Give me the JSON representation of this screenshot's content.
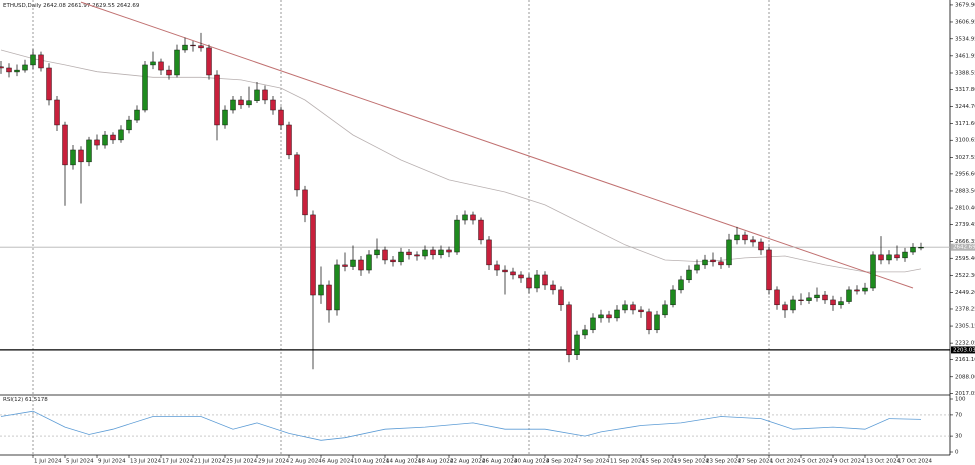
{
  "chart_data": {
    "type": "candlestick",
    "symbol": "ETHUSD,Daily",
    "categories": [
      null,
      null,
      null,
      null,
      "1 Jul 2024",
      null,
      null,
      null,
      "5 Jul 2024",
      null,
      null,
      null,
      "9 Jul 2024",
      null,
      null,
      null,
      "13 Jul 2024",
      null,
      null,
      null,
      "17 Jul 2024",
      null,
      null,
      null,
      "21 Jul 2024",
      null,
      null,
      null,
      "25 Jul 2024",
      null,
      null,
      null,
      "29 Jul 2024",
      null,
      null,
      null,
      "2 Aug 2024",
      null,
      null,
      null,
      "6 Aug 2024",
      null,
      null,
      null,
      "10 Aug 2024",
      null,
      null,
      null,
      "14 Aug 2024",
      null,
      null,
      null,
      "18 Aug 2024",
      null,
      null,
      null,
      "22 Aug 2024",
      null,
      null,
      null,
      "26 Aug 2024",
      null,
      null,
      null,
      "30 Aug 2024",
      null,
      null,
      null,
      "3 Sep 2024",
      null,
      null,
      null,
      "7 Sep 2024",
      null,
      null,
      null,
      "11 Sep 2024",
      null,
      null,
      null,
      "15 Sep 2024",
      null,
      null,
      null,
      "19 Sep 2024",
      null,
      null,
      null,
      "23 Sep 2024",
      null,
      null,
      null,
      "27 Sep 2024",
      null,
      null,
      null,
      "1 Oct 2024",
      null,
      null,
      null,
      "5 Oct 2024",
      null,
      null,
      null,
      "9 Oct 2024",
      null,
      null,
      null,
      "13 Oct 2024",
      null,
      null,
      null,
      "17 Oct 2024",
      null,
      null,
      null
    ],
    "open": [
      3415,
      3410,
      3393,
      3401,
      3423,
      3466,
      3410,
      3273,
      3166,
      2995,
      3059,
      3008,
      3102,
      3080,
      3123,
      3102,
      3145,
      3187,
      3230,
      3423,
      3436,
      3401,
      3380,
      3487,
      3508,
      3505,
      3496,
      3380,
      3166,
      3230,
      3273,
      3252,
      3270,
      3316,
      3273,
      3230,
      3166,
      3038,
      2888,
      2781,
      2438,
      2481,
      2374,
      2567,
      2560,
      2588,
      2545,
      2610,
      2631,
      2588,
      2580,
      2622,
      2610,
      2605,
      2631,
      2610,
      2631,
      2622,
      2759,
      2781,
      2759,
      2674,
      2567,
      2545,
      2537,
      2524,
      2511,
      2468,
      2524,
      2481,
      2460,
      2396,
      2182,
      2267,
      2289,
      2340,
      2353,
      2340,
      2374,
      2396,
      2374,
      2366,
      2289,
      2353,
      2396,
      2460,
      2503,
      2545,
      2567,
      2588,
      2580,
      2567,
      2674,
      2695,
      2674,
      2665,
      2631,
      2460,
      2396,
      2374,
      2417,
      2414,
      2426,
      2438,
      2417,
      2396,
      2410,
      2460,
      2455,
      2468,
      2610,
      2588,
      2610,
      2597,
      2622,
      2642.08
    ],
    "high": [
      3440,
      3430,
      3425,
      3445,
      3490,
      3480,
      3430,
      3290,
      3180,
      3080,
      3075,
      3115,
      3125,
      3140,
      3135,
      3165,
      3205,
      3250,
      3440,
      3480,
      3450,
      3420,
      3510,
      3540,
      3525,
      3560,
      3510,
      3400,
      3250,
      3290,
      3290,
      3330,
      3350,
      3335,
      3290,
      3245,
      3180,
      3050,
      2905,
      2800,
      2560,
      2500,
      2590,
      2620,
      2650,
      2605,
      2630,
      2680,
      2645,
      2605,
      2640,
      2635,
      2625,
      2650,
      2645,
      2650,
      2645,
      2780,
      2800,
      2795,
      2770,
      2690,
      2585,
      2565,
      2555,
      2540,
      2530,
      2545,
      2540,
      2500,
      2475,
      2410,
      2285,
      2310,
      2360,
      2375,
      2370,
      2395,
      2415,
      2410,
      2390,
      2380,
      2370,
      2415,
      2480,
      2520,
      2565,
      2590,
      2610,
      2620,
      2600,
      2700,
      2730,
      2710,
      2690,
      2680,
      2645,
      2475,
      2410,
      2435,
      2445,
      2450,
      2470,
      2455,
      2435,
      2430,
      2475,
      2480,
      2490,
      2625,
      2690,
      2630,
      2650,
      2640,
      2660,
      2661.97
    ],
    "low": [
      3385,
      3370,
      3375,
      3390,
      3405,
      3395,
      3250,
      3140,
      2820,
      2975,
      2830,
      2990,
      3060,
      3065,
      3085,
      3090,
      3130,
      3175,
      3220,
      3405,
      3380,
      3360,
      3370,
      3475,
      3480,
      3480,
      3360,
      3100,
      3150,
      3215,
      3235,
      3240,
      3260,
      3255,
      3210,
      3145,
      3020,
      2860,
      2750,
      2120,
      2400,
      2320,
      2350,
      2540,
      2545,
      2520,
      2530,
      2595,
      2570,
      2560,
      2565,
      2590,
      2585,
      2590,
      2590,
      2595,
      2600,
      2610,
      2740,
      2740,
      2655,
      2545,
      2520,
      2440,
      2505,
      2490,
      2445,
      2450,
      2460,
      2440,
      2370,
      2150,
      2160,
      2250,
      2275,
      2320,
      2320,
      2325,
      2360,
      2355,
      2340,
      2270,
      2275,
      2340,
      2385,
      2445,
      2490,
      2530,
      2550,
      2560,
      2550,
      2555,
      2655,
      2655,
      2645,
      2610,
      2440,
      2375,
      2340,
      2360,
      2395,
      2400,
      2410,
      2400,
      2370,
      2380,
      2400,
      2440,
      2440,
      2455,
      2570,
      2570,
      2585,
      2580,
      2610,
      2629.55
    ],
    "close": [
      3410,
      3393,
      3401,
      3423,
      3466,
      3410,
      3273,
      3166,
      2995,
      3059,
      3008,
      3102,
      3080,
      3123,
      3102,
      3145,
      3187,
      3230,
      3423,
      3436,
      3401,
      3380,
      3487,
      3508,
      3505,
      3496,
      3380,
      3166,
      3230,
      3273,
      3252,
      3270,
      3316,
      3273,
      3230,
      3166,
      3038,
      2888,
      2781,
      2438,
      2481,
      2374,
      2567,
      2560,
      2588,
      2545,
      2610,
      2631,
      2588,
      2580,
      2622,
      2610,
      2605,
      2631,
      2610,
      2631,
      2622,
      2759,
      2781,
      2759,
      2674,
      2567,
      2545,
      2537,
      2524,
      2511,
      2468,
      2524,
      2481,
      2460,
      2396,
      2182,
      2267,
      2289,
      2340,
      2353,
      2340,
      2374,
      2396,
      2374,
      2366,
      2289,
      2353,
      2396,
      2460,
      2503,
      2545,
      2567,
      2588,
      2580,
      2567,
      2674,
      2695,
      2674,
      2665,
      2631,
      2460,
      2396,
      2374,
      2417,
      2414,
      2426,
      2438,
      2417,
      2396,
      2410,
      2460,
      2455,
      2468,
      2610,
      2588,
      2610,
      2597,
      2622,
      2642.08,
      2642.69
    ],
    "up_color": "#1e8a1e",
    "down_color": "#c8203c",
    "ylim": [
      2010,
      3701
    ],
    "yticks": [
      {
        "value": 3679.9,
        "label": "3679.90"
      },
      3606.95,
      3534.95,
      3461.95,
      3388.55,
      {
        "value": 3317.8,
        "label": "3317.80"
      },
      {
        "value": 3244.7,
        "label": "3244.70"
      },
      {
        "value": 3171.6,
        "label": "3171.60"
      },
      3100.65,
      3027.55,
      {
        "value": 2956.6,
        "label": "2956.60"
      },
      {
        "value": 2883.5,
        "label": "2883.50"
      },
      {
        "value": 2810.4,
        "label": "2810.40"
      },
      2739.45,
      2666.35,
      {
        "value": 2595.4,
        "label": "2595.40"
      },
      {
        "value": 2522.3,
        "label": "2522.30"
      },
      {
        "value": 2449.2,
        "label": "2449.20"
      },
      2378.25,
      2305.15,
      2232.05,
      {
        "value": 2161.1,
        "label": "2161.10"
      },
      {
        "value": 2088,
        "label": "2088.00"
      },
      2017.05
    ],
    "moving_average": {
      "x": [
        0,
        4,
        8,
        12,
        19,
        25,
        30,
        35,
        38,
        44,
        50,
        56,
        63,
        68,
        73,
        78,
        83,
        88,
        93,
        98,
        103,
        108,
        113,
        115
      ],
      "values": [
        3487,
        3450,
        3423,
        3394,
        3370,
        3370,
        3359,
        3324,
        3273,
        3123,
        3016,
        2931,
        2879,
        2824,
        2738,
        2653,
        2588,
        2580,
        2597,
        2605,
        2567,
        2537,
        2537,
        2550
      ],
      "color": "#b8b0b0"
    },
    "trendline": {
      "x": [
        10,
        114
      ],
      "values": [
        3692,
        2468
      ],
      "color": "#c07070"
    },
    "price_lines": [
      {
        "value": 2642.69,
        "color": "#b4b4b4"
      },
      {
        "value": 2203.03,
        "color": "#000000"
      }
    ],
    "rsi": {
      "name": "RSI(12)",
      "x": [
        0,
        4,
        8,
        11,
        14,
        19,
        25,
        29,
        32,
        36,
        40,
        43,
        48,
        53,
        59,
        63,
        68,
        73,
        75,
        80,
        85,
        90,
        95,
        99,
        104,
        108,
        111,
        115
      ],
      "values": [
        67,
        77,
        47,
        33,
        43,
        67,
        67,
        43,
        55,
        35,
        22,
        27,
        43,
        47,
        55,
        43,
        43,
        30,
        38,
        50,
        55,
        67,
        63,
        43,
        47,
        43,
        63,
        61.5178
      ],
      "ylim": [
        0,
        100
      ],
      "yticks": [
        100,
        70,
        30,
        0
      ],
      "color": "#5b9bd5"
    }
  }
}
